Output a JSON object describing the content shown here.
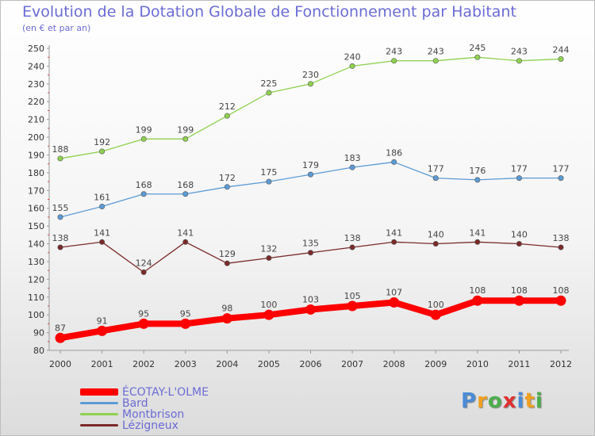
{
  "title": "Evolution de la Dotation Globale de Fonctionnement par Habitant",
  "subtitle": "(en € et par an)",
  "logo": {
    "letters": [
      {
        "ch": "P",
        "color": "#4a8bd6"
      },
      {
        "ch": "r",
        "color": "#f0a020"
      },
      {
        "ch": "o",
        "color": "#4cae4c"
      },
      {
        "ch": "x",
        "color": "#e03030"
      },
      {
        "ch": "i",
        "color": "#4a8bd6"
      },
      {
        "ch": "t",
        "color": "#f0a020"
      },
      {
        "ch": "i",
        "color": "#4cae4c"
      }
    ]
  },
  "chart_data": {
    "type": "line",
    "x": [
      "2000",
      "2001",
      "2002",
      "2003",
      "2004",
      "2005",
      "2006",
      "2007",
      "2008",
      "2009",
      "2010",
      "2011",
      "2012"
    ],
    "ylim": [
      80,
      250
    ],
    "yticks": [
      80,
      90,
      100,
      110,
      120,
      130,
      140,
      150,
      160,
      170,
      180,
      190,
      200,
      210,
      220,
      230,
      240,
      250
    ],
    "grid": false,
    "legend_position": "bottom-left",
    "series": [
      {
        "name": "ÉCOTAY-L'OLME",
        "color": "#ff0000",
        "thick": true,
        "values": [
          87,
          91,
          95,
          95,
          98,
          100,
          103,
          105,
          107,
          100,
          108,
          108,
          108
        ]
      },
      {
        "name": "Bard",
        "color": "#5b9bd5",
        "thick": false,
        "values": [
          155,
          161,
          168,
          168,
          172,
          175,
          179,
          183,
          186,
          177,
          176,
          177,
          177
        ]
      },
      {
        "name": "Montbrison",
        "color": "#8fd14f",
        "thick": false,
        "values": [
          188,
          192,
          199,
          199,
          212,
          225,
          230,
          240,
          243,
          243,
          245,
          243,
          244
        ]
      },
      {
        "name": "Lézigneux",
        "color": "#7b2a2a",
        "thick": false,
        "values": [
          138,
          141,
          124,
          141,
          129,
          132,
          135,
          138,
          141,
          140,
          141,
          140,
          138
        ]
      }
    ]
  }
}
